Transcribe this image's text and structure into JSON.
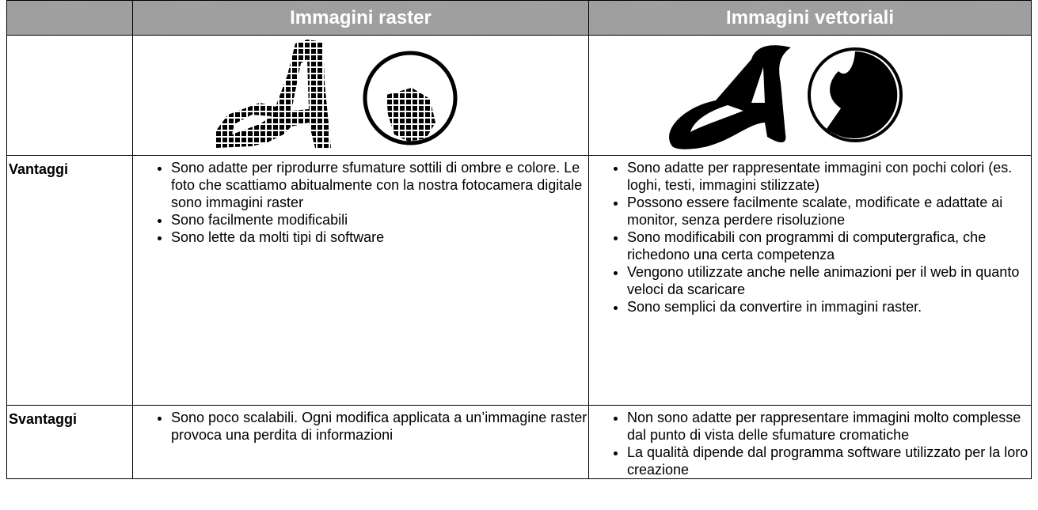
{
  "table": {
    "header": [
      "Immagini raster",
      "Immagini vettoriali"
    ],
    "rows": [
      {
        "label": "Vantaggi",
        "raster": [
          "Sono adatte per riprodurre sfumature sottili di ombre e colore. Le foto che scattiamo abitualmente con la nostra fotocamera digitale sono immagini raster",
          "Sono facilmente modificabili",
          "Sono lette da molti tipi di software"
        ],
        "vector": [
          "Sono adatte per rappresentate immagini con pochi colori (es. loghi, testi, immagini stilizzate)",
          "Possono essere facilmente scalate, modificate e adattate ai monitor, senza perdere risoluzione",
          "Sono modificabili con programmi di computergrafica, che richedono una certa competenza",
          "Vengono utilizzate anche nelle animazioni per il web in quanto veloci da scaricare",
          "Sono semplici da convertire in immagini raster."
        ]
      },
      {
        "label": "Svantaggi",
        "raster": [
          "Sono poco scalabili. Ogni modifica applicata a un’immagine raster provoca una perdita di informazioni"
        ],
        "vector": [
          "Non sono adatte per rappresentare immagini molto complesse dal punto di vista delle sfumature cromatiche",
          "La qualità dipende dal programma software utilizzato per la loro creazione"
        ]
      }
    ]
  }
}
